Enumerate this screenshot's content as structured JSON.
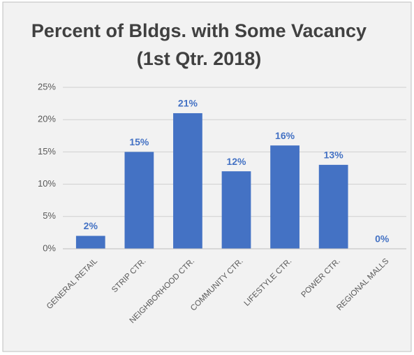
{
  "chart_data": {
    "type": "bar",
    "title": "Percent of Bldgs. with Some Vacancy",
    "subtitle": "(1st Qtr. 2018)",
    "categories": [
      "GENERAL RETAIL",
      "STRIP CTR.",
      "NEIGHBORHOOD CTR.",
      "COMMUNITY CTR.",
      "LIFESTYLE CTR.",
      "POWER CTR.",
      "REGIONAL MALLS"
    ],
    "values": [
      2,
      15,
      21,
      12,
      16,
      13,
      0
    ],
    "value_labels": [
      "2%",
      "15%",
      "21%",
      "12%",
      "16%",
      "13%",
      "0%"
    ],
    "color": "#4472c4",
    "ylim": [
      0,
      25
    ],
    "yticks": [
      {
        "value": 0,
        "label": "0%"
      },
      {
        "value": 5,
        "label": "5%"
      },
      {
        "value": 10,
        "label": "10%"
      },
      {
        "value": 15,
        "label": "15%"
      },
      {
        "value": 20,
        "label": "20%"
      },
      {
        "value": 25,
        "label": "25%"
      }
    ],
    "grid": true
  }
}
